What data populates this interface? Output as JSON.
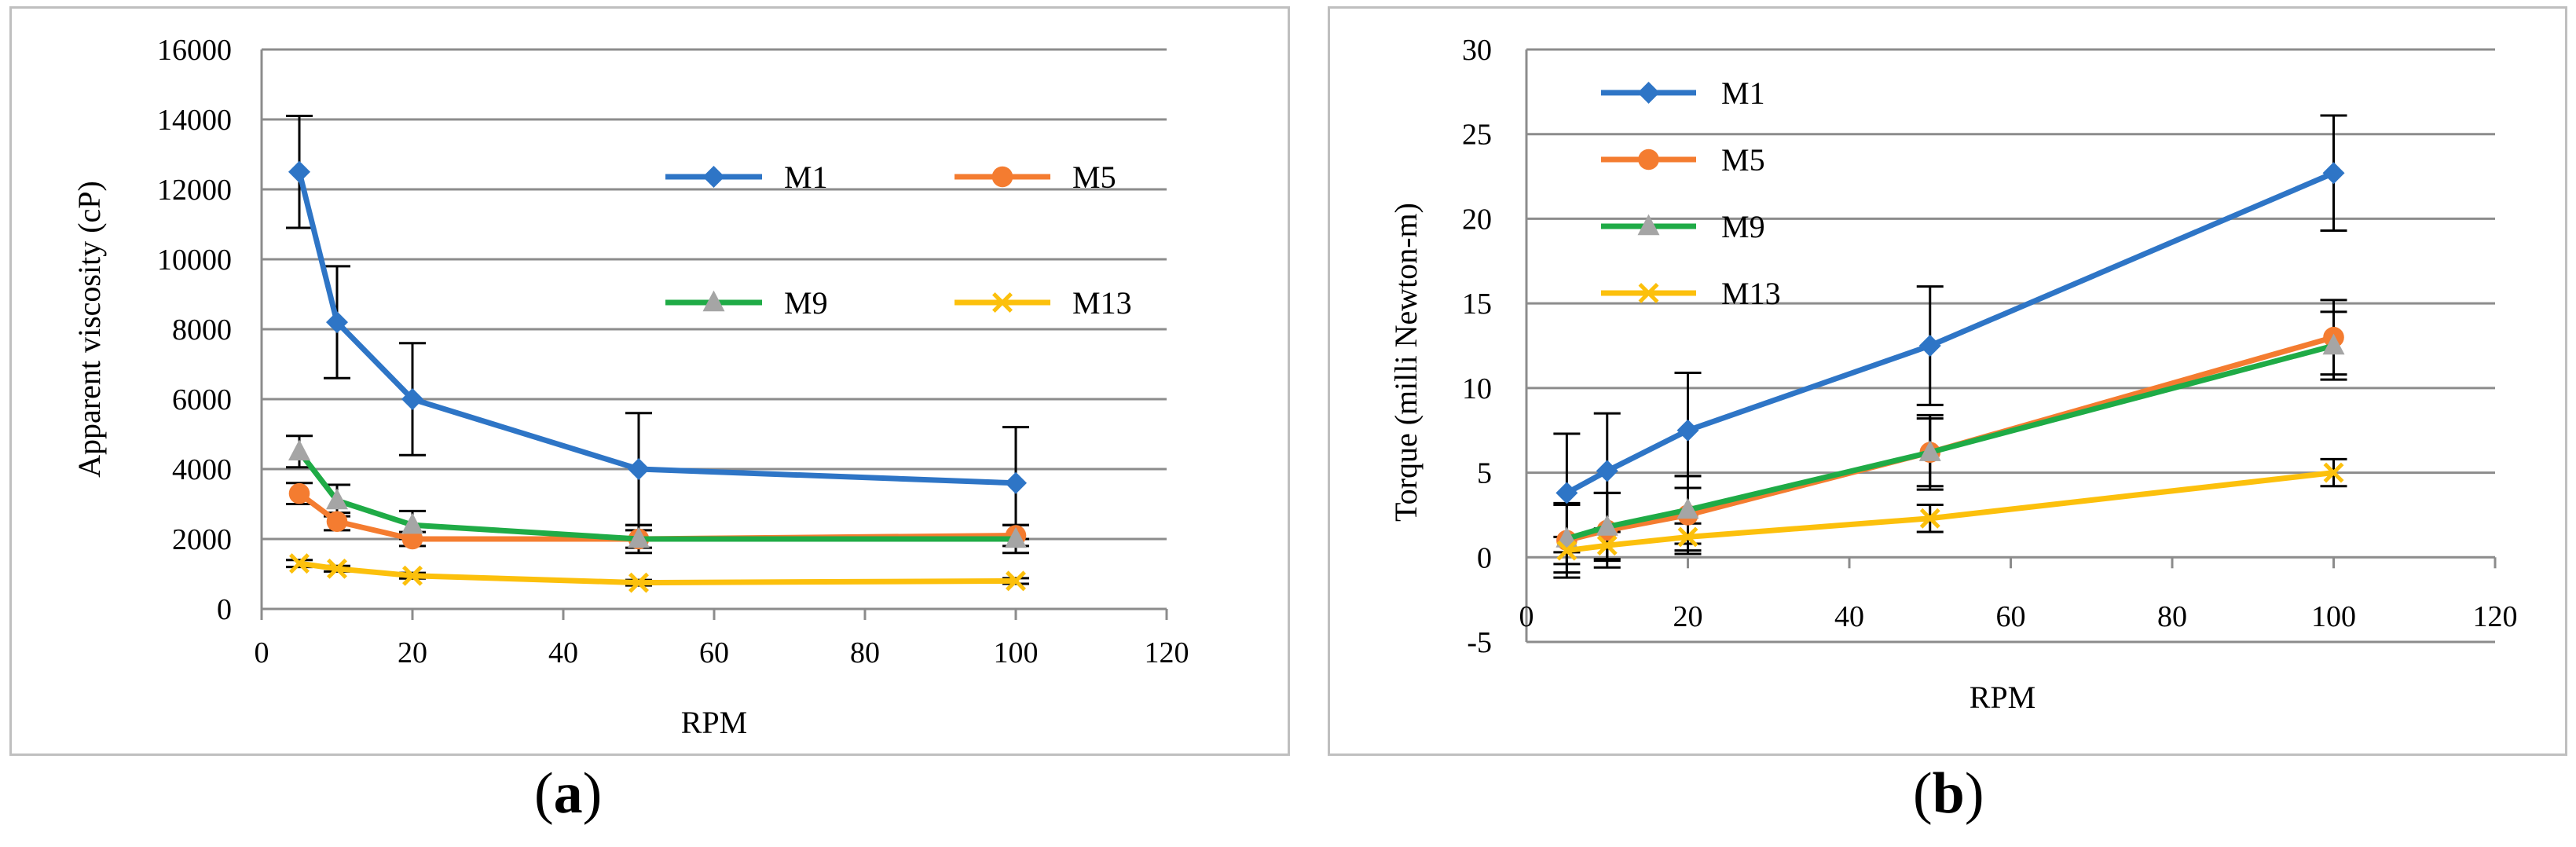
{
  "colors": {
    "M1": "#2e75c6",
    "M5": "#f47c30",
    "M9": "#1fab46",
    "M13": "#fcc00c",
    "marker_M9": "#a5a5a5",
    "grid": "#8c8c8c",
    "axis": "#8c8c8c",
    "error_bar": "#000000"
  },
  "captions": {
    "a": {
      "open": "(",
      "letter": "a",
      "close": ")"
    },
    "b": {
      "open": "(",
      "letter": "b",
      "close": ")"
    }
  },
  "chart_data": [
    {
      "id": "a",
      "type": "line",
      "title": "",
      "xlabel": "RPM",
      "ylabel": "Apparent viscosity (cP)",
      "xlim": [
        0,
        120
      ],
      "ylim": [
        0,
        16000
      ],
      "xticks": [
        0,
        20,
        40,
        60,
        80,
        100,
        120
      ],
      "yticks": [
        0,
        2000,
        4000,
        6000,
        8000,
        10000,
        12000,
        14000,
        16000
      ],
      "grid": true,
      "legend": "upper-right, two columns",
      "x": [
        5,
        10,
        20,
        50,
        100
      ],
      "series": [
        {
          "name": "M1",
          "marker": "diamond",
          "values": [
            12500,
            8200,
            6000,
            4000,
            3600
          ],
          "errors": [
            1600,
            1600,
            1600,
            1600,
            1600
          ]
        },
        {
          "name": "M5",
          "marker": "circle",
          "values": [
            3300,
            2500,
            2000,
            2000,
            2100
          ],
          "errors": [
            300,
            250,
            200,
            250,
            300
          ]
        },
        {
          "name": "M9",
          "marker": "triangle",
          "values": [
            4500,
            3100,
            2400,
            2000,
            2000
          ],
          "errors": [
            450,
            450,
            400,
            400,
            400
          ]
        },
        {
          "name": "M13",
          "marker": "x",
          "values": [
            1300,
            1150,
            950,
            750,
            800
          ],
          "errors": [
            100,
            80,
            80,
            80,
            80
          ]
        }
      ]
    },
    {
      "id": "b",
      "type": "line",
      "title": "",
      "xlabel": "RPM",
      "ylabel": "Torque (milli Newton-m)",
      "xlim": [
        0,
        120
      ],
      "ylim": [
        -5,
        30
      ],
      "xticks": [
        0,
        20,
        40,
        60,
        80,
        100,
        120
      ],
      "yticks": [
        -5,
        0,
        5,
        10,
        15,
        20,
        25,
        30
      ],
      "grid": true,
      "legend": "upper-left, one column",
      "x": [
        5,
        10,
        20,
        50,
        100
      ],
      "series": [
        {
          "name": "M1",
          "marker": "diamond",
          "values": [
            3.8,
            5.1,
            7.5,
            12.5,
            22.7
          ],
          "errors": [
            3.5,
            3.4,
            3.4,
            3.5,
            3.4
          ]
        },
        {
          "name": "M5",
          "marker": "circle",
          "values": [
            1.0,
            1.6,
            2.5,
            6.2,
            13.0
          ],
          "errors": [
            2.2,
            2.2,
            2.3,
            2.2,
            2.2
          ]
        },
        {
          "name": "M9",
          "marker": "triangle",
          "values": [
            1.1,
            1.8,
            2.8,
            6.2,
            12.5
          ],
          "errors": [
            2.0,
            2.0,
            2.0,
            2.0,
            2.0
          ]
        },
        {
          "name": "M13",
          "marker": "x",
          "values": [
            0.4,
            0.7,
            1.2,
            2.3,
            5.0
          ],
          "errors": [
            0.8,
            0.8,
            0.8,
            0.8,
            0.8
          ]
        }
      ]
    }
  ]
}
